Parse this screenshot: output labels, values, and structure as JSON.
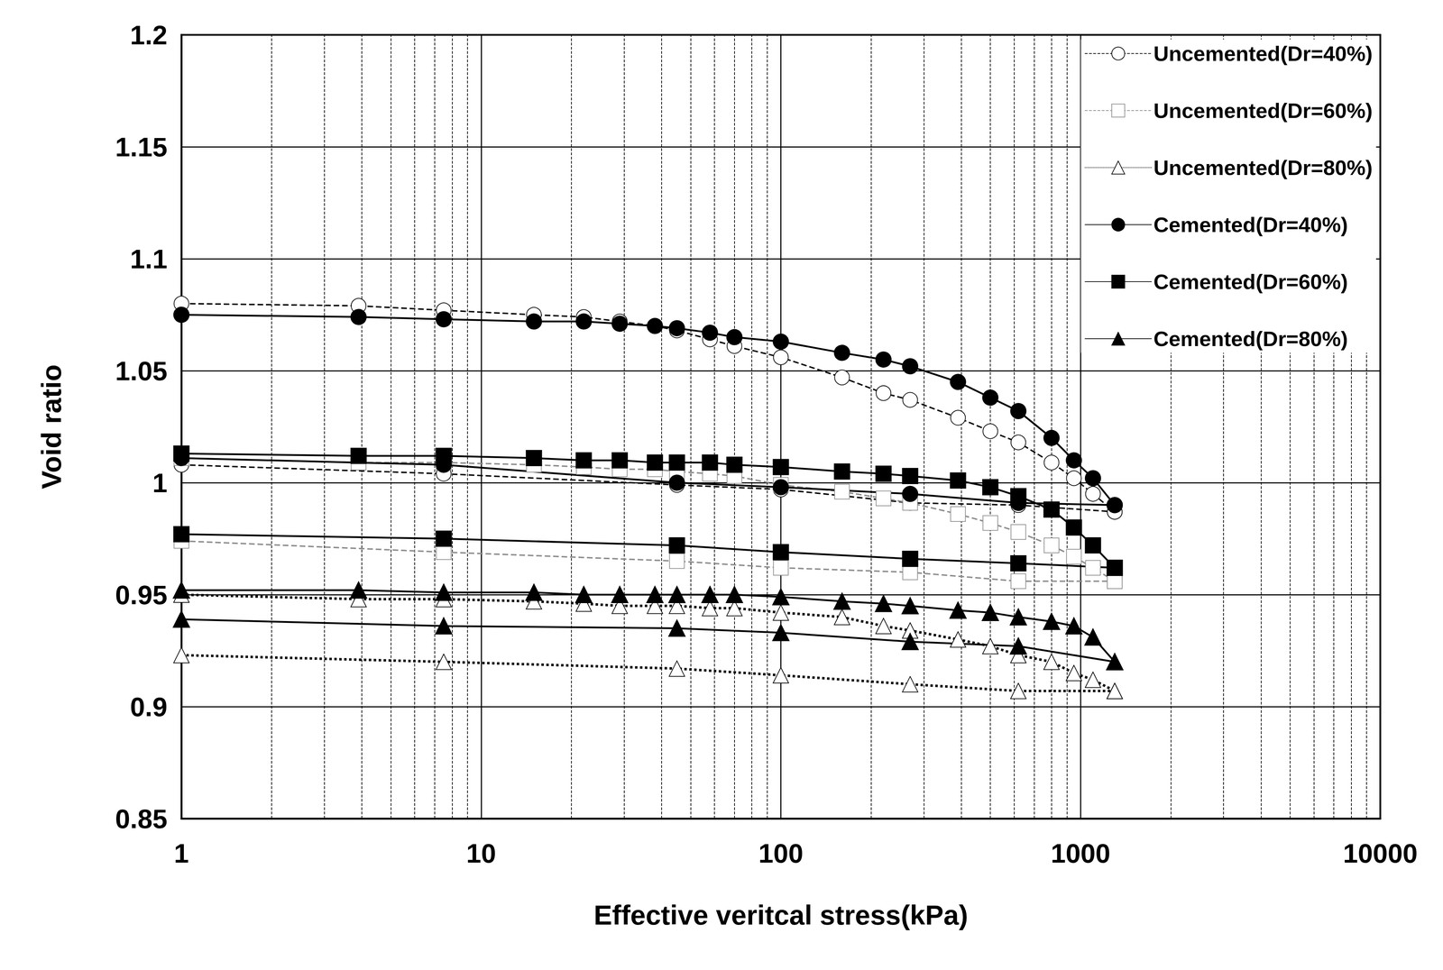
{
  "chart_data": {
    "type": "line",
    "x_label": "Effective veritcal stress(kPa)",
    "y_label": "Void ratio",
    "log": "x",
    "grid": true,
    "legend": "upper right",
    "xlim": [
      1,
      10000
    ],
    "xticks": [
      1,
      10,
      100,
      1000,
      10000
    ],
    "ylim": [
      0.85,
      1.2
    ],
    "yticks": [
      0.85,
      0.9,
      0.95,
      1,
      1.05,
      1.1,
      1.15,
      1.2
    ],
    "series": [
      {
        "name": "Uncemented(Dr=40%)",
        "color": "#000000",
        "marker": "open_circle",
        "line_style": "dashed",
        "x": [
          1,
          3.9,
          7.5,
          15,
          22,
          29,
          38,
          45,
          58,
          70,
          100,
          160,
          220,
          270,
          390,
          500,
          620,
          800,
          950,
          1100,
          1300,
          null,
          1,
          7.5,
          45,
          100,
          270,
          620,
          1300
        ],
        "values": [
          1.08,
          1.079,
          1.077,
          1.075,
          1.074,
          1.072,
          1.07,
          1.068,
          1.064,
          1.061,
          1.056,
          1.047,
          1.04,
          1.037,
          1.029,
          1.023,
          1.018,
          1.009,
          1.002,
          0.995,
          0.987,
          null,
          1.008,
          1.004,
          0.999,
          0.997,
          0.991,
          0.99,
          0.987
        ]
      },
      {
        "name": "Uncemented(Dr=60%)",
        "color": "#8c8c8c",
        "marker": "open_square",
        "line_style": "dashed",
        "x": [
          1,
          3.9,
          7.5,
          15,
          22,
          29,
          38,
          45,
          58,
          70,
          100,
          160,
          220,
          270,
          390,
          500,
          620,
          800,
          950,
          1100,
          1300,
          null,
          1,
          7.5,
          45,
          100,
          270,
          620,
          1300
        ],
        "values": [
          1.011,
          1.009,
          1.009,
          1.008,
          1.007,
          1.006,
          1.006,
          1.005,
          1.004,
          1.003,
          0.999,
          0.996,
          0.993,
          0.991,
          0.986,
          0.982,
          0.978,
          0.972,
          0.967,
          0.962,
          0.956,
          null,
          0.974,
          0.969,
          0.965,
          0.962,
          0.96,
          0.956,
          0.956
        ]
      },
      {
        "name": "Uncemented(Dr=80%)",
        "color": "#000000",
        "marker": "open_triangle",
        "line_style": "dotted",
        "x": [
          1,
          3.9,
          7.5,
          15,
          22,
          29,
          38,
          45,
          58,
          70,
          100,
          160,
          220,
          270,
          390,
          500,
          620,
          800,
          950,
          1100,
          1300,
          null,
          1,
          7.5,
          45,
          100,
          270,
          620,
          1300
        ],
        "values": [
          0.95,
          0.948,
          0.948,
          0.947,
          0.946,
          0.945,
          0.945,
          0.945,
          0.944,
          0.944,
          0.942,
          0.94,
          0.936,
          0.934,
          0.93,
          0.927,
          0.923,
          0.92,
          0.915,
          0.912,
          0.907,
          null,
          0.923,
          0.92,
          0.917,
          0.914,
          0.91,
          0.907,
          0.907
        ]
      },
      {
        "name": "Cemented(Dr=40%)",
        "color": "#000000",
        "marker": "circle",
        "line_style": "solid",
        "x": [
          1,
          3.9,
          7.5,
          15,
          22,
          29,
          38,
          45,
          58,
          70,
          100,
          160,
          220,
          270,
          390,
          500,
          620,
          800,
          950,
          1100,
          1300,
          null,
          1,
          7.5,
          45,
          100,
          270,
          620,
          1300
        ],
        "values": [
          1.075,
          1.074,
          1.073,
          1.072,
          1.072,
          1.071,
          1.07,
          1.069,
          1.067,
          1.065,
          1.063,
          1.058,
          1.055,
          1.052,
          1.045,
          1.038,
          1.032,
          1.02,
          1.01,
          1.002,
          0.99,
          null,
          1.011,
          1.008,
          1.0,
          0.998,
          0.995,
          0.991,
          0.99
        ]
      },
      {
        "name": "Cemented(Dr=60%)",
        "color": "#000000",
        "marker": "square",
        "line_style": "solid",
        "x": [
          1,
          3.9,
          7.5,
          15,
          22,
          29,
          38,
          45,
          58,
          70,
          100,
          160,
          220,
          270,
          390,
          500,
          620,
          800,
          950,
          1100,
          1300,
          null,
          1,
          7.5,
          45,
          100,
          270,
          620,
          1300
        ],
        "values": [
          1.013,
          1.012,
          1.012,
          1.011,
          1.01,
          1.01,
          1.009,
          1.009,
          1.009,
          1.008,
          1.007,
          1.005,
          1.004,
          1.003,
          1.001,
          0.998,
          0.994,
          0.988,
          0.98,
          0.972,
          0.962,
          null,
          0.977,
          0.975,
          0.972,
          0.969,
          0.966,
          0.964,
          0.962
        ]
      },
      {
        "name": "Cemented(Dr=80%)",
        "color": "#000000",
        "marker": "triangle",
        "line_style": "solid",
        "x": [
          1,
          3.9,
          7.5,
          15,
          22,
          29,
          38,
          45,
          58,
          70,
          100,
          160,
          220,
          270,
          390,
          500,
          620,
          800,
          950,
          1100,
          1300,
          null,
          1,
          7.5,
          45,
          100,
          270,
          620,
          1300
        ],
        "values": [
          0.952,
          0.952,
          0.951,
          0.951,
          0.95,
          0.95,
          0.95,
          0.95,
          0.95,
          0.95,
          0.949,
          0.947,
          0.946,
          0.945,
          0.943,
          0.942,
          0.94,
          0.938,
          0.936,
          0.931,
          0.92,
          null,
          0.939,
          0.936,
          0.935,
          0.933,
          0.929,
          0.927,
          0.92
        ]
      }
    ]
  }
}
